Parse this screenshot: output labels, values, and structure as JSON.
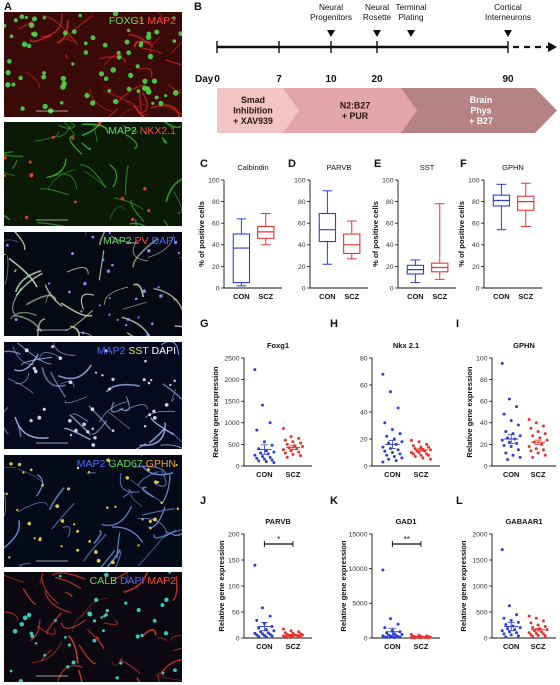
{
  "panel_letters": {
    "A": "A",
    "B": "B",
    "C": "C",
    "D": "D",
    "E": "E",
    "F": "F",
    "G": "G",
    "H": "H",
    "I": "I",
    "J": "J",
    "K": "K",
    "L": "L"
  },
  "micrographs": [
    {
      "labels": [
        {
          "text": "FOXG1",
          "color": "#5fe05a"
        },
        {
          "text": " MAP2",
          "color": "#ff4a3a"
        }
      ]
    },
    {
      "labels": [
        {
          "text": "MAP2",
          "color": "#5fe05a"
        },
        {
          "text": " NKX2.1",
          "color": "#ff4a3a"
        }
      ]
    },
    {
      "labels": [
        {
          "text": "MAP2",
          "color": "#5fe05a"
        },
        {
          "text": " PV",
          "color": "#ff4a3a"
        },
        {
          "text": " DAPI",
          "color": "#4a6cff"
        }
      ]
    },
    {
      "labels": [
        {
          "text": "MAP2",
          "color": "#4a6cff"
        },
        {
          "text": " SST",
          "color": "#e8e85a"
        },
        {
          "text": " DAPI",
          "color": "#ffffff"
        }
      ]
    },
    {
      "labels": [
        {
          "text": "MAP2",
          "color": "#4a6cff"
        },
        {
          "text": " GAD67",
          "color": "#5fe05a"
        },
        {
          "text": " GPHN",
          "color": "#f0a030"
        }
      ]
    },
    {
      "labels": [
        {
          "text": "CALB",
          "color": "#5fe05a"
        },
        {
          "text": " DAPI",
          "color": "#4a6cff"
        },
        {
          "text": " MAP2",
          "color": "#ff4a3a"
        }
      ]
    }
  ],
  "timeline": {
    "day_label": "Day",
    "days": [
      "0",
      "7",
      "10",
      "20",
      "90"
    ],
    "milestones": [
      {
        "lines": [
          "Neural",
          "Progenitors"
        ]
      },
      {
        "lines": [
          "Neural",
          "Rosette"
        ]
      },
      {
        "lines": [
          "Terminal",
          "Plating"
        ]
      },
      {
        "lines": [
          "Cortical",
          "Interneurons"
        ]
      }
    ],
    "stages": [
      {
        "lines": [
          "Smad",
          "Inhibition",
          "+ XAV939"
        ],
        "color": "#f2c4c4"
      },
      {
        "lines": [
          "N2:B27",
          "+ PUR"
        ],
        "color": "#e3a6a8"
      },
      {
        "lines": [
          "Brain",
          "Phys",
          "+ B27"
        ],
        "color": "#b58482"
      }
    ]
  },
  "colors": {
    "con": "#2b3fd6",
    "scz": "#e8332f"
  },
  "chart_data": [
    {
      "type": "box",
      "panel": "C",
      "title": "Calbindin",
      "ylabel": "% of positive cells",
      "ylim": [
        0,
        100
      ],
      "yticks": [
        "0",
        "20",
        "40",
        "60",
        "80",
        "100"
      ],
      "categories": [
        "CON",
        "SCZ"
      ],
      "boxes": [
        {
          "min": 2,
          "q1": 5,
          "median": 37,
          "q3": 50,
          "max": 64
        },
        {
          "min": 40,
          "q1": 46,
          "median": 52,
          "q3": 57,
          "max": 69
        }
      ]
    },
    {
      "type": "box",
      "panel": "D",
      "title": "PARVB",
      "ylabel": "",
      "ylim": [
        0,
        100
      ],
      "yticks": [
        "0",
        "20",
        "40",
        "60",
        "80",
        "100"
      ],
      "categories": [
        "CON",
        "SCZ"
      ],
      "boxes": [
        {
          "min": 22,
          "q1": 43,
          "median": 54,
          "q3": 69,
          "max": 90
        },
        {
          "min": 27,
          "q1": 32,
          "median": 40,
          "q3": 50,
          "max": 62
        }
      ]
    },
    {
      "type": "box",
      "panel": "E",
      "title": "SST",
      "ylabel": "% of positive cells",
      "ylim": [
        0,
        100
      ],
      "yticks": [
        "0",
        "20",
        "40",
        "60",
        "80",
        "100"
      ],
      "categories": [
        "CON",
        "SCZ"
      ],
      "boxes": [
        {
          "min": 5,
          "q1": 13,
          "median": 17,
          "q3": 21,
          "max": 26
        },
        {
          "min": 8,
          "q1": 15,
          "median": 19,
          "q3": 23,
          "max": 78
        }
      ]
    },
    {
      "type": "box",
      "panel": "F",
      "title": "GPHN",
      "ylabel": "% of positive cells",
      "ylim": [
        0,
        100
      ],
      "yticks": [
        "0",
        "20",
        "40",
        "60",
        "80",
        "100"
      ],
      "categories": [
        "CON",
        "SCZ"
      ],
      "boxes": [
        {
          "min": 54,
          "q1": 76,
          "median": 81,
          "q3": 86,
          "max": 96
        },
        {
          "min": 57,
          "q1": 72,
          "median": 80,
          "q3": 85,
          "max": 97
        }
      ]
    },
    {
      "type": "scatter",
      "panel": "G",
      "title": "Foxg1",
      "ylabel": "Relative gene expression",
      "ylim": [
        0,
        2500
      ],
      "yticks": [
        "0",
        "500",
        "1000",
        "1500",
        "2000",
        "2500"
      ],
      "categories": [
        "CON",
        "SCZ"
      ],
      "sig": "",
      "groups": [
        {
          "mean": 380,
          "sem": 110,
          "values": [
            2230,
            1410,
            1000,
            830,
            560,
            480,
            400,
            350,
            320,
            300,
            280,
            250,
            220,
            200,
            180,
            160,
            140,
            120,
            100,
            80
          ]
        },
        {
          "mean": 430,
          "sem": 50,
          "values": [
            870,
            680,
            640,
            600,
            560,
            530,
            500,
            470,
            450,
            420,
            400,
            380,
            350,
            320,
            300,
            270,
            240,
            200
          ]
        }
      ]
    },
    {
      "type": "scatter",
      "panel": "H",
      "title": "Nkx 2.1",
      "ylabel": "",
      "ylim": [
        0,
        80
      ],
      "yticks": [
        "0",
        "20",
        "40",
        "60",
        "80"
      ],
      "categories": [
        "CON",
        "SCZ"
      ],
      "sig": "",
      "groups": [
        {
          "mean": 16,
          "sem": 3,
          "values": [
            68,
            55,
            43,
            32,
            27,
            24,
            22,
            20,
            18,
            17,
            16,
            14,
            13,
            12,
            11,
            10,
            9,
            8,
            7,
            6,
            5,
            4,
            3
          ]
        },
        {
          "mean": 12,
          "sem": 1,
          "values": [
            19,
            18,
            16,
            15,
            14,
            14,
            13,
            12,
            12,
            11,
            11,
            10,
            10,
            9,
            9,
            8,
            8,
            7,
            6,
            5
          ]
        }
      ]
    },
    {
      "type": "scatter",
      "panel": "I",
      "title": "GPHN",
      "ylabel": "Relative gene expression",
      "ylim": [
        0,
        100
      ],
      "yticks": [
        "0",
        "20",
        "40",
        "60",
        "80",
        "100"
      ],
      "categories": [
        "CON",
        "SCZ"
      ],
      "sig": "",
      "groups": [
        {
          "mean": 25,
          "sem": 4,
          "values": [
            95,
            62,
            55,
            48,
            42,
            38,
            32,
            30,
            28,
            26,
            25,
            24,
            22,
            21,
            19,
            18,
            15,
            12,
            10,
            8,
            6
          ]
        },
        {
          "mean": 22,
          "sem": 2,
          "values": [
            43,
            40,
            37,
            35,
            32,
            30,
            28,
            26,
            24,
            22,
            20,
            18,
            16,
            15,
            14,
            12,
            10,
            8
          ]
        }
      ]
    },
    {
      "type": "scatter",
      "panel": "J",
      "title": "PARVB",
      "ylabel": "Relative gene expression",
      "ylim": [
        0,
        200
      ],
      "yticks": [
        "0",
        "50",
        "100",
        "150",
        "200"
      ],
      "categories": [
        "CON",
        "SCZ"
      ],
      "sig": "*",
      "groups": [
        {
          "mean": 22,
          "sem": 8,
          "values": [
            140,
            58,
            42,
            34,
            28,
            22,
            19,
            16,
            14,
            12,
            10,
            9,
            8,
            7,
            6,
            5,
            4,
            3,
            2
          ]
        },
        {
          "mean": 6,
          "sem": 1,
          "values": [
            17,
            14,
            12,
            10,
            9,
            8,
            7,
            6,
            6,
            5,
            5,
            4,
            4,
            3,
            3,
            2,
            2,
            1
          ]
        }
      ]
    },
    {
      "type": "scatter",
      "panel": "K",
      "title": "GAD1",
      "ylabel": "Relative gene expression",
      "ylim": [
        0,
        15000
      ],
      "yticks": [
        "0",
        "5000",
        "10000",
        "15000"
      ],
      "categories": [
        "CON",
        "SCZ"
      ],
      "sig": "**",
      "groups": [
        {
          "mean": 900,
          "sem": 500,
          "values": [
            9800,
            2800,
            2000,
            1500,
            1100,
            900,
            700,
            600,
            500,
            400,
            350,
            300,
            250,
            200,
            150,
            120,
            100,
            80,
            60
          ]
        },
        {
          "mean": 120,
          "sem": 30,
          "values": [
            500,
            400,
            300,
            250,
            200,
            180,
            150,
            130,
            110,
            100,
            90,
            80,
            70,
            60,
            50,
            40,
            30,
            20
          ]
        }
      ]
    },
    {
      "type": "scatter",
      "panel": "L",
      "title": "GABAAR1",
      "ylabel": "Relative gene expression",
      "ylim": [
        0,
        2000
      ],
      "yticks": [
        "0",
        "500",
        "1000",
        "1500",
        "2000"
      ],
      "categories": [
        "CON",
        "SCZ"
      ],
      "sig": "",
      "groups": [
        {
          "mean": 220,
          "sem": 80,
          "values": [
            1700,
            620,
            450,
            380,
            340,
            300,
            260,
            230,
            200,
            180,
            160,
            140,
            120,
            100,
            80,
            60,
            40,
            20
          ]
        },
        {
          "mean": 160,
          "sem": 25,
          "values": [
            420,
            380,
            330,
            290,
            250,
            220,
            200,
            180,
            160,
            140,
            120,
            100,
            90,
            80,
            60,
            50,
            40,
            30
          ]
        }
      ]
    }
  ]
}
